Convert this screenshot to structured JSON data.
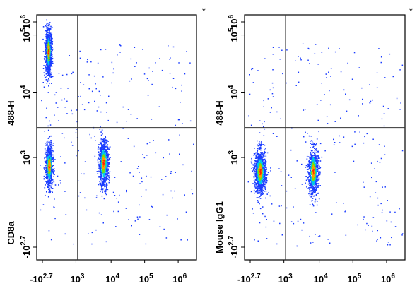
{
  "chart_data": [
    {
      "type": "scatter",
      "panel": "left",
      "marker_symbol": "*",
      "ylabel_parts": [
        "488-H",
        "CD8a"
      ],
      "x_ticks": [
        {
          "base": "-10",
          "exp": "2.7"
        },
        {
          "base": "10",
          "exp": "3"
        },
        {
          "base": "10",
          "exp": "4"
        },
        {
          "base": "10",
          "exp": "5"
        },
        {
          "base": "10",
          "exp": "6"
        }
      ],
      "y_ticks": [
        {
          "base": "-10",
          "exp": "2.7"
        },
        {
          "base": "10",
          "exp": "3"
        },
        {
          "base": "10",
          "exp": "4"
        },
        {
          "base": "10",
          "exp": "5"
        },
        {
          "base": "10",
          "exp": "6"
        }
      ],
      "clusters": [
        {
          "name": "upper-left",
          "x_decade": 0.18,
          "y_decade": 3.7,
          "sx": 0.05,
          "sy": 0.22,
          "count": 900
        },
        {
          "name": "lower-left",
          "x_decade": 0.2,
          "y_decade": 1.6,
          "sx": 0.06,
          "sy": 0.2,
          "count": 700
        },
        {
          "name": "lower-right",
          "x_decade": 1.9,
          "y_decade": 1.65,
          "sx": 0.08,
          "sy": 0.22,
          "count": 750
        }
      ],
      "quadrant_gate": {
        "x_decade": 1.1,
        "y_decade": 2.3
      },
      "grid": false
    },
    {
      "type": "scatter",
      "panel": "right",
      "marker_symbol": "*",
      "ylabel_parts": [
        "488-H",
        "Mouse IgG1"
      ],
      "x_ticks": [
        {
          "base": "-10",
          "exp": "2.7"
        },
        {
          "base": "10",
          "exp": "3"
        },
        {
          "base": "10",
          "exp": "4"
        },
        {
          "base": "10",
          "exp": "5"
        },
        {
          "base": "10",
          "exp": "6"
        }
      ],
      "y_ticks": [
        {
          "base": "-10",
          "exp": "2.7"
        },
        {
          "base": "10",
          "exp": "3"
        },
        {
          "base": "10",
          "exp": "4"
        },
        {
          "base": "10",
          "exp": "5"
        },
        {
          "base": "10",
          "exp": "6"
        }
      ],
      "clusters": [
        {
          "name": "lower-left",
          "x_decade": 0.3,
          "y_decade": 1.5,
          "sx": 0.09,
          "sy": 0.2,
          "count": 950
        },
        {
          "name": "lower-right",
          "x_decade": 1.95,
          "y_decade": 1.5,
          "sx": 0.08,
          "sy": 0.22,
          "count": 750
        }
      ],
      "quadrant_gate": {
        "x_decade": 1.1,
        "y_decade": 2.3
      },
      "grid": false
    }
  ]
}
